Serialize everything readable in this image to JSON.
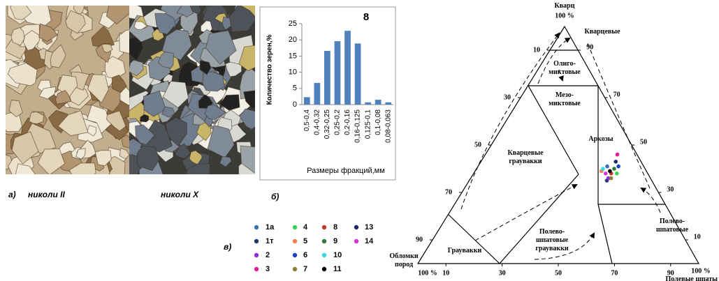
{
  "figure": {
    "panel_a": "а)",
    "caption_parallel": "николи II",
    "caption_crossed": "николи X",
    "panel_b": "б)",
    "panel_c": "в)"
  },
  "chart_data": [
    {
      "type": "bar",
      "title": "8",
      "ylabel": "Количество зерен,%",
      "xlabel": "Размеры фракций,мм",
      "categories": [
        "0,5-0,4",
        "0,4-0,32",
        "0,32-0,25",
        "0,25-0,2",
        "0,2-0,16",
        "0,16-0,125",
        "0,125-0,1",
        "0,1-0,08",
        "0,08-0,063"
      ],
      "values": [
        2.3,
        6.7,
        16.6,
        19.6,
        22.8,
        18.9,
        0.7,
        1.5,
        0.7
      ],
      "color": "#4f81bd",
      "ylim": [
        0,
        25
      ],
      "yticks": [
        0,
        5,
        10,
        15,
        20,
        25
      ]
    },
    {
      "type": "ternary",
      "vertex_labels": [
        [
          "Кварц"
        ],
        [
          "Обломки",
          "пород"
        ],
        [
          "Полевые шпаты"
        ]
      ],
      "vertex_values": [
        "100 %",
        "100 %",
        "100 %"
      ],
      "fragments_ticks": [
        10,
        30,
        50,
        70,
        90
      ],
      "quartz_ticks": [
        90,
        70,
        50,
        30,
        10
      ],
      "feldspar_ticks": [
        10,
        30,
        50,
        70,
        90
      ],
      "regions": [
        [
          "Кварцевые"
        ],
        [
          "Олиго-",
          "миктовые"
        ],
        [
          "Мезо-",
          "миктовые"
        ],
        [
          "Аркозы"
        ],
        [
          "Кварцевые",
          "граувакки"
        ],
        [
          "Полево-",
          "шпатовые",
          "граувакки"
        ],
        [
          "Полево-",
          "шпатовые"
        ],
        [
          "Граувакки"
        ]
      ],
      "series": [
        {
          "name": "1а",
          "color": "#3a6fb0",
          "quartz": 41,
          "feldspar": 46
        },
        {
          "name": "1т",
          "color": "#1f3a68",
          "quartz": 35,
          "feldspar": 49
        },
        {
          "name": "2",
          "color": "#8a2be2",
          "quartz": 36,
          "feldspar": 49
        },
        {
          "name": "3",
          "color": "#e6199b",
          "quartz": 46,
          "feldspar": 47
        },
        {
          "name": "4",
          "color": "#39d353",
          "quartz": 38,
          "feldspar": 51
        },
        {
          "name": "5",
          "color": "#f08050",
          "quartz": 39,
          "feldspar": 45
        },
        {
          "name": "6",
          "color": "#1f3fbf",
          "quartz": 41,
          "feldspar": 50
        },
        {
          "name": "7",
          "color": "#8b7d3a",
          "quartz": 36,
          "feldspar": 50
        },
        {
          "name": "8",
          "color": "#c0392b",
          "quartz": 38,
          "feldspar": 49
        },
        {
          "name": "9",
          "color": "#2e7d32",
          "quartz": 40,
          "feldspar": 49
        },
        {
          "name": "10",
          "color": "#33d6e6",
          "quartz": 40,
          "feldspar": 45
        },
        {
          "name": "11",
          "color": "#000000",
          "quartz": 39,
          "feldspar": 48
        },
        {
          "name": "13",
          "color": "#1a2a6c",
          "quartz": 43,
          "feldspar": 48
        },
        {
          "name": "14",
          "color": "#d633d6",
          "quartz": 38,
          "feldspar": 47
        }
      ]
    }
  ]
}
